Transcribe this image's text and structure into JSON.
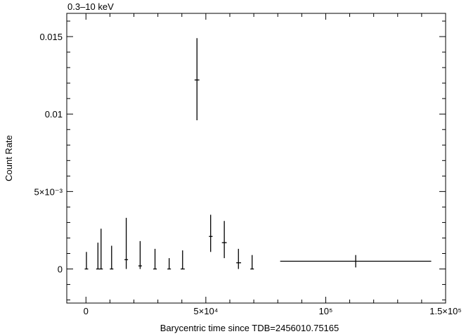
{
  "chart_data": {
    "type": "scatter",
    "title": "0.3–10 keV",
    "xlabel": "Barycentric time since TDB=2456010.75165",
    "ylabel": "Count Rate",
    "xlim": [
      -8000,
      150000
    ],
    "ylim": [
      -0.0022,
      0.0165
    ],
    "x_ticks": [
      {
        "value": 0,
        "label": "0"
      },
      {
        "value": 50000,
        "label": "5×10⁴"
      },
      {
        "value": 100000,
        "label": "10⁵"
      },
      {
        "value": 150000,
        "label": "1.5×10⁵"
      }
    ],
    "y_ticks": [
      {
        "value": 0,
        "label": "0"
      },
      {
        "value": 0.005,
        "label": "5×10⁻³"
      },
      {
        "value": 0.01,
        "label": "0.01"
      },
      {
        "value": 0.015,
        "label": "0.015"
      }
    ],
    "grid": false,
    "series": [
      {
        "points": [
          {
            "x": 200,
            "xlo": 0,
            "xhi": 400,
            "y": 0.0,
            "ylo": 0.0,
            "yhi": 0.0011
          },
          {
            "x": 5000,
            "xlo": 4800,
            "xhi": 5200,
            "y": 0.0,
            "ylo": 0.0,
            "yhi": 0.0017
          },
          {
            "x": 6300,
            "xlo": 6100,
            "xhi": 6500,
            "y": 0.0,
            "ylo": 0.0,
            "yhi": 0.0026
          },
          {
            "x": 10700,
            "xlo": 10500,
            "xhi": 10900,
            "y": 0.0,
            "ylo": 0.0,
            "yhi": 0.0015
          },
          {
            "x": 16800,
            "xlo": 16300,
            "xhi": 17300,
            "y": 0.0006,
            "ylo": 0.0,
            "yhi": 0.0033
          },
          {
            "x": 22600,
            "xlo": 22300,
            "xhi": 22900,
            "y": 0.0002,
            "ylo": 0.0,
            "yhi": 0.0018
          },
          {
            "x": 28800,
            "xlo": 28500,
            "xhi": 29100,
            "y": 0.0,
            "ylo": 0.0,
            "yhi": 0.0013
          },
          {
            "x": 34700,
            "xlo": 34400,
            "xhi": 35000,
            "y": 0.0,
            "ylo": 0.0,
            "yhi": 0.0007
          },
          {
            "x": 40300,
            "xlo": 39500,
            "xhi": 41200,
            "y": 0.0,
            "ylo": 0.0,
            "yhi": 0.0012
          },
          {
            "x": 46300,
            "xlo": 45300,
            "xhi": 47300,
            "y": 0.0122,
            "ylo": 0.0096,
            "yhi": 0.0149
          },
          {
            "x": 52000,
            "xlo": 51300,
            "xhi": 52800,
            "y": 0.0021,
            "ylo": 0.0011,
            "yhi": 0.0035
          },
          {
            "x": 57700,
            "xlo": 56700,
            "xhi": 58700,
            "y": 0.0017,
            "ylo": 0.0007,
            "yhi": 0.0031
          },
          {
            "x": 63600,
            "xlo": 62700,
            "xhi": 64700,
            "y": 0.0004,
            "ylo": 0.0,
            "yhi": 0.0013
          },
          {
            "x": 69300,
            "xlo": 69000,
            "xhi": 69600,
            "y": 0.0,
            "ylo": 0.0,
            "yhi": 0.0009
          },
          {
            "x": 112500,
            "xlo": 81000,
            "xhi": 144000,
            "y": 0.0005,
            "ylo": 0.0001,
            "yhi": 0.0009
          }
        ]
      }
    ]
  }
}
